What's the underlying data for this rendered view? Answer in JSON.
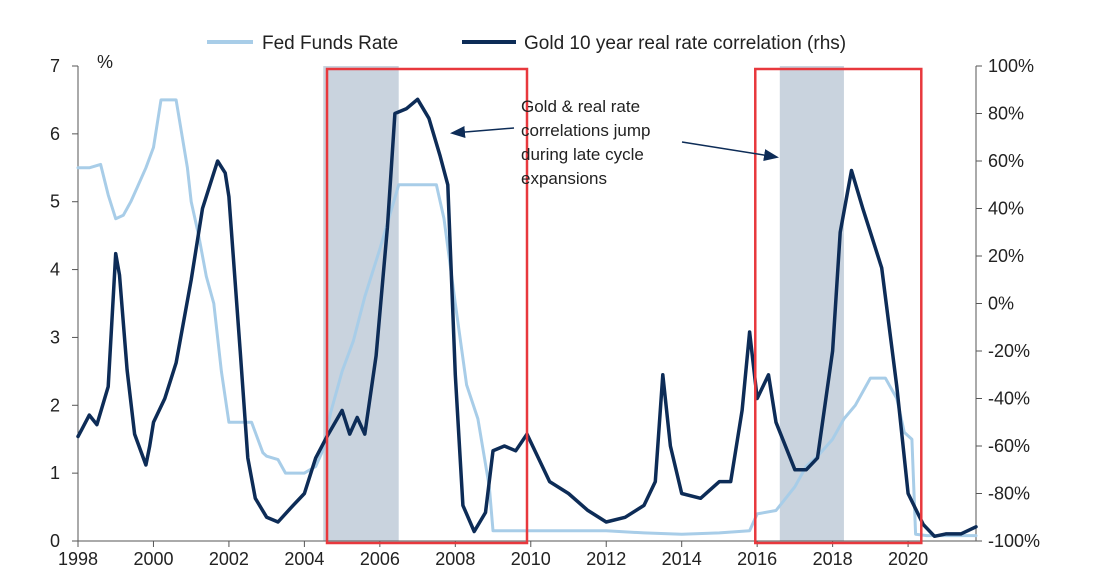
{
  "chart_data": {
    "type": "line",
    "title": "",
    "legend": [
      {
        "name": "Fed Funds Rate",
        "color": "#a8cde8"
      },
      {
        "name": "Gold 10 year real rate correlation (rhs)",
        "color": "#0d2c57"
      }
    ],
    "left_axis": {
      "unit_label": "%",
      "ylim": [
        0,
        7
      ],
      "ticks": [
        "0",
        "1",
        "2",
        "3",
        "4",
        "5",
        "6",
        "7"
      ]
    },
    "right_axis": {
      "ylim": [
        -100,
        100
      ],
      "ticks": [
        "-100%",
        "-80%",
        "-60%",
        "-40%",
        "-20%",
        "0%",
        "20%",
        "40%",
        "60%",
        "80%",
        "100%"
      ]
    },
    "x_axis": {
      "xlim": [
        1998,
        2021.8
      ],
      "ticks": [
        "1998",
        "2000",
        "2002",
        "2004",
        "2006",
        "2008",
        "2010",
        "2012",
        "2014",
        "2016",
        "2018",
        "2020"
      ]
    },
    "shaded_periods": [
      [
        2004.5,
        2006.5
      ],
      [
        2016.6,
        2018.3
      ]
    ],
    "highlight_boxes": [
      [
        2004.6,
        2009.9
      ],
      [
        2015.95,
        2020.35
      ]
    ],
    "annotation": {
      "lines": [
        "Gold & real rate",
        "correlations jump",
        "during late cycle",
        "expansions"
      ],
      "x": 2010.0,
      "y_pct": 80
    },
    "series": [
      {
        "name": "Fed Funds Rate",
        "axis": "left",
        "x": [
          1998,
          1998.3,
          1998.6,
          1998.8,
          1999,
          1999.2,
          1999.4,
          1999.6,
          1999.8,
          2000,
          2000.2,
          2000.4,
          2000.6,
          2000.9,
          2001,
          2001.2,
          2001.4,
          2001.6,
          2001.8,
          2002,
          2002.2,
          2002.6,
          2002.9,
          2003,
          2003.3,
          2003.5,
          2003.8,
          2004,
          2004.3,
          2004.5,
          2004.7,
          2005,
          2005.3,
          2005.6,
          2006,
          2006.5,
          2006.8,
          2007,
          2007.5,
          2007.7,
          2008,
          2008.3,
          2008.6,
          2008.9,
          2009,
          2010,
          2011,
          2012,
          2013,
          2014,
          2015,
          2015.8,
          2016,
          2016.5,
          2017,
          2017.3,
          2017.6,
          2018,
          2018.3,
          2018.6,
          2019,
          2019.4,
          2019.7,
          2019.9,
          2020.1,
          2020.2,
          2020.5,
          2021,
          2021.8
        ],
        "values": [
          5.5,
          5.5,
          5.55,
          5.1,
          4.75,
          4.8,
          5.0,
          5.25,
          5.5,
          5.8,
          6.5,
          6.5,
          6.5,
          5.5,
          5.0,
          4.5,
          3.9,
          3.5,
          2.5,
          1.75,
          1.75,
          1.75,
          1.3,
          1.25,
          1.2,
          1.0,
          1.0,
          1.0,
          1.1,
          1.35,
          1.9,
          2.5,
          2.95,
          3.6,
          4.3,
          5.25,
          5.25,
          5.25,
          5.25,
          4.75,
          3.5,
          2.3,
          1.8,
          0.8,
          0.15,
          0.15,
          0.15,
          0.15,
          0.12,
          0.1,
          0.12,
          0.15,
          0.4,
          0.45,
          0.8,
          1.1,
          1.25,
          1.5,
          1.8,
          2.0,
          2.4,
          2.4,
          2.1,
          1.6,
          1.5,
          0.1,
          0.08,
          0.08,
          0.08
        ]
      },
      {
        "name": "Gold 10 year real rate correlation (rhs)",
        "axis": "right",
        "x": [
          1998,
          1998.1,
          1998.3,
          1998.5,
          1998.8,
          1999,
          1999.1,
          1999.3,
          1999.5,
          1999.8,
          1999.9,
          2000,
          2000.3,
          2000.6,
          2001,
          2001.3,
          2001.6,
          2001.7,
          2001.9,
          2002,
          2002.3,
          2002.5,
          2002.7,
          2003,
          2003.3,
          2003.7,
          2004,
          2004.3,
          2004.6,
          2005,
          2005.2,
          2005.4,
          2005.6,
          2005.9,
          2006.2,
          2006.4,
          2006.7,
          2007,
          2007.3,
          2007.6,
          2007.8,
          2008,
          2008.2,
          2008.5,
          2008.8,
          2009,
          2009.3,
          2009.6,
          2009.9,
          2010.5,
          2011,
          2011.5,
          2012,
          2012.5,
          2013,
          2013.3,
          2013.5,
          2013.7,
          2014,
          2014.5,
          2015,
          2015.3,
          2015.6,
          2015.8,
          2016,
          2016.3,
          2016.5,
          2017,
          2017.3,
          2017.6,
          2018,
          2018.2,
          2018.5,
          2018.8,
          2019,
          2019.3,
          2019.7,
          2020,
          2020.4,
          2020.7,
          2021,
          2021.4,
          2021.8
        ],
        "values": [
          -56,
          -53,
          -47,
          -51,
          -35,
          21,
          12,
          -28,
          -55,
          -68,
          -60,
          -50,
          -40,
          -25,
          10,
          40,
          55,
          60,
          55,
          45,
          -20,
          -65,
          -82,
          -90,
          -92,
          -85,
          -80,
          -65,
          -56,
          -45,
          -55,
          -48,
          -55,
          -22,
          32,
          80,
          82,
          86,
          78,
          62,
          50,
          -30,
          -85,
          -96,
          -88,
          -62,
          -60,
          -62,
          -55,
          -75,
          -80,
          -87,
          -92,
          -90,
          -85,
          -75,
          -30,
          -60,
          -80,
          -82,
          -75,
          -75,
          -45,
          -12,
          -40,
          -30,
          -50,
          -70,
          -70,
          -65,
          -20,
          30,
          56,
          40,
          30,
          15,
          -35,
          -80,
          -93,
          -98,
          -97,
          -97,
          -94
        ]
      }
    ]
  }
}
